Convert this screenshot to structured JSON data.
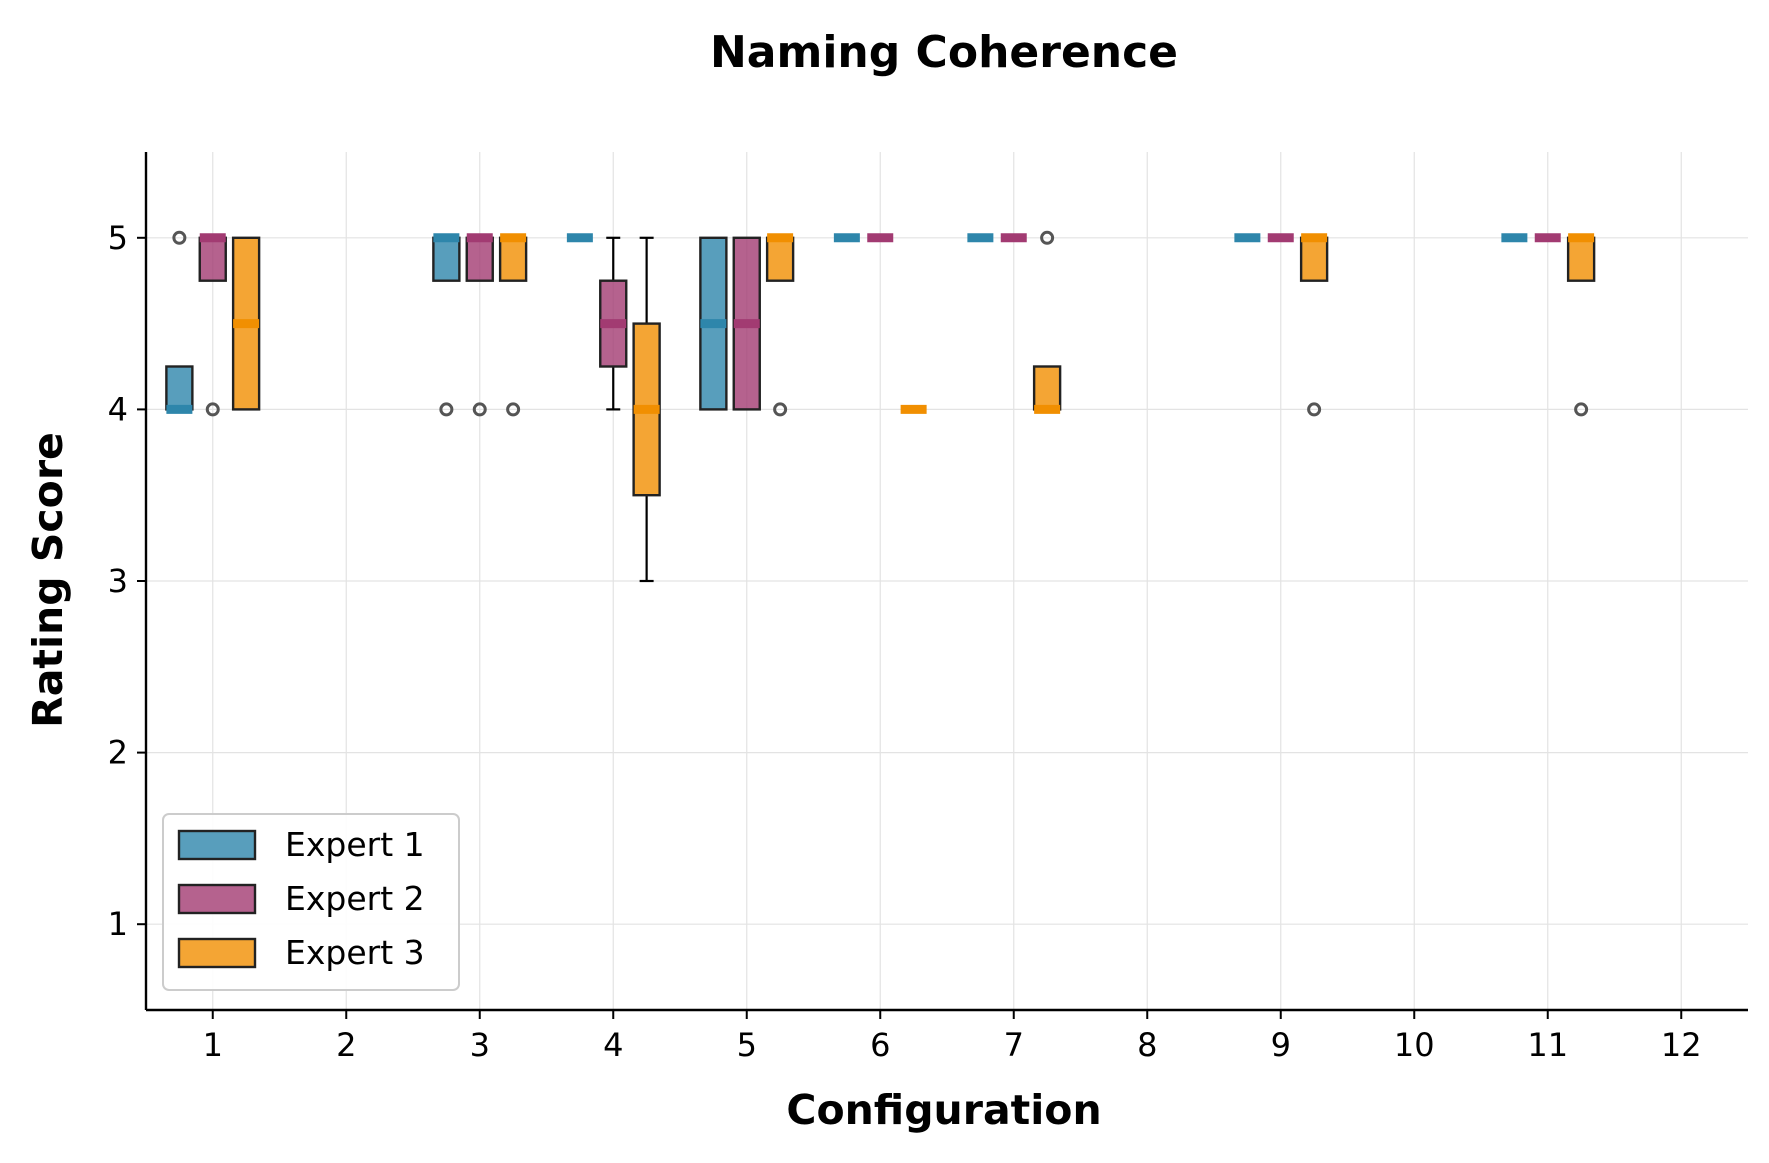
{
  "chart_data": {
    "type": "box",
    "title": "Naming Coherence",
    "xlabel": "Configuration",
    "ylabel": "Rating Score",
    "categories": [
      "1",
      "2",
      "3",
      "4",
      "5",
      "6",
      "7",
      "8",
      "9",
      "10",
      "11",
      "12"
    ],
    "ylim": [
      0.5,
      5.5
    ],
    "yticks": [
      1,
      2,
      3,
      4,
      5
    ],
    "grid": true,
    "legend_position": "lower-left",
    "series": [
      {
        "name": "Expert 1",
        "color": "#2e86ab",
        "boxes": [
          {
            "x": 1,
            "q1": 4,
            "median": 4,
            "q3": 4.25,
            "whislo": 4,
            "whishi": 4.25,
            "fliers": [
              5
            ]
          },
          {
            "x": 3,
            "q1": 4.75,
            "median": 5,
            "q3": 5,
            "whislo": 4.75,
            "whishi": 5,
            "fliers": [
              4
            ]
          },
          {
            "x": 4,
            "q1": 5,
            "median": 5,
            "q3": 5,
            "whislo": 5,
            "whishi": 5,
            "fliers": []
          },
          {
            "x": 5,
            "q1": 4,
            "median": 4.5,
            "q3": 5,
            "whislo": 4,
            "whishi": 5,
            "fliers": []
          },
          {
            "x": 6,
            "q1": 5,
            "median": 5,
            "q3": 5,
            "whislo": 5,
            "whishi": 5,
            "fliers": []
          },
          {
            "x": 7,
            "q1": 5,
            "median": 5,
            "q3": 5,
            "whislo": 5,
            "whishi": 5,
            "fliers": []
          },
          {
            "x": 9,
            "q1": 5,
            "median": 5,
            "q3": 5,
            "whislo": 5,
            "whishi": 5,
            "fliers": []
          },
          {
            "x": 11,
            "q1": 5,
            "median": 5,
            "q3": 5,
            "whislo": 5,
            "whishi": 5,
            "fliers": []
          }
        ]
      },
      {
        "name": "Expert 2",
        "color": "#a23b72",
        "boxes": [
          {
            "x": 1,
            "q1": 4.75,
            "median": 5,
            "q3": 5,
            "whislo": 4.75,
            "whishi": 5,
            "fliers": [
              4
            ]
          },
          {
            "x": 3,
            "q1": 4.75,
            "median": 5,
            "q3": 5,
            "whislo": 4.75,
            "whishi": 5,
            "fliers": [
              4
            ]
          },
          {
            "x": 4,
            "q1": 4.25,
            "median": 4.5,
            "q3": 4.75,
            "whislo": 4,
            "whishi": 5,
            "fliers": []
          },
          {
            "x": 5,
            "q1": 4,
            "median": 4.5,
            "q3": 5,
            "whislo": 4,
            "whishi": 5,
            "fliers": []
          },
          {
            "x": 6,
            "q1": 5,
            "median": 5,
            "q3": 5,
            "whislo": 5,
            "whishi": 5,
            "fliers": []
          },
          {
            "x": 7,
            "q1": 5,
            "median": 5,
            "q3": 5,
            "whislo": 5,
            "whishi": 5,
            "fliers": []
          },
          {
            "x": 9,
            "q1": 5,
            "median": 5,
            "q3": 5,
            "whislo": 5,
            "whishi": 5,
            "fliers": []
          },
          {
            "x": 11,
            "q1": 5,
            "median": 5,
            "q3": 5,
            "whislo": 5,
            "whishi": 5,
            "fliers": []
          }
        ]
      },
      {
        "name": "Expert 3",
        "color": "#f18f01",
        "boxes": [
          {
            "x": 1,
            "q1": 4,
            "median": 4.5,
            "q3": 5,
            "whislo": 4,
            "whishi": 5,
            "fliers": []
          },
          {
            "x": 3,
            "q1": 4.75,
            "median": 5,
            "q3": 5,
            "whislo": 4.75,
            "whishi": 5,
            "fliers": [
              4
            ]
          },
          {
            "x": 4,
            "q1": 3.5,
            "median": 4,
            "q3": 4.5,
            "whislo": 3,
            "whishi": 5,
            "fliers": []
          },
          {
            "x": 5,
            "q1": 4.75,
            "median": 5,
            "q3": 5,
            "whislo": 4.75,
            "whishi": 5,
            "fliers": [
              4
            ]
          },
          {
            "x": 6,
            "q1": 4,
            "median": 4,
            "q3": 4,
            "whislo": 4,
            "whishi": 4,
            "fliers": []
          },
          {
            "x": 7,
            "q1": 4,
            "median": 4,
            "q3": 4.25,
            "whislo": 4,
            "whishi": 4.25,
            "fliers": [
              5
            ]
          },
          {
            "x": 9,
            "q1": 4.75,
            "median": 5,
            "q3": 5,
            "whislo": 4.75,
            "whishi": 5,
            "fliers": [
              4
            ]
          },
          {
            "x": 11,
            "q1": 4.75,
            "median": 5,
            "q3": 5,
            "whislo": 4.75,
            "whishi": 5,
            "fliers": [
              4
            ]
          }
        ]
      }
    ]
  }
}
